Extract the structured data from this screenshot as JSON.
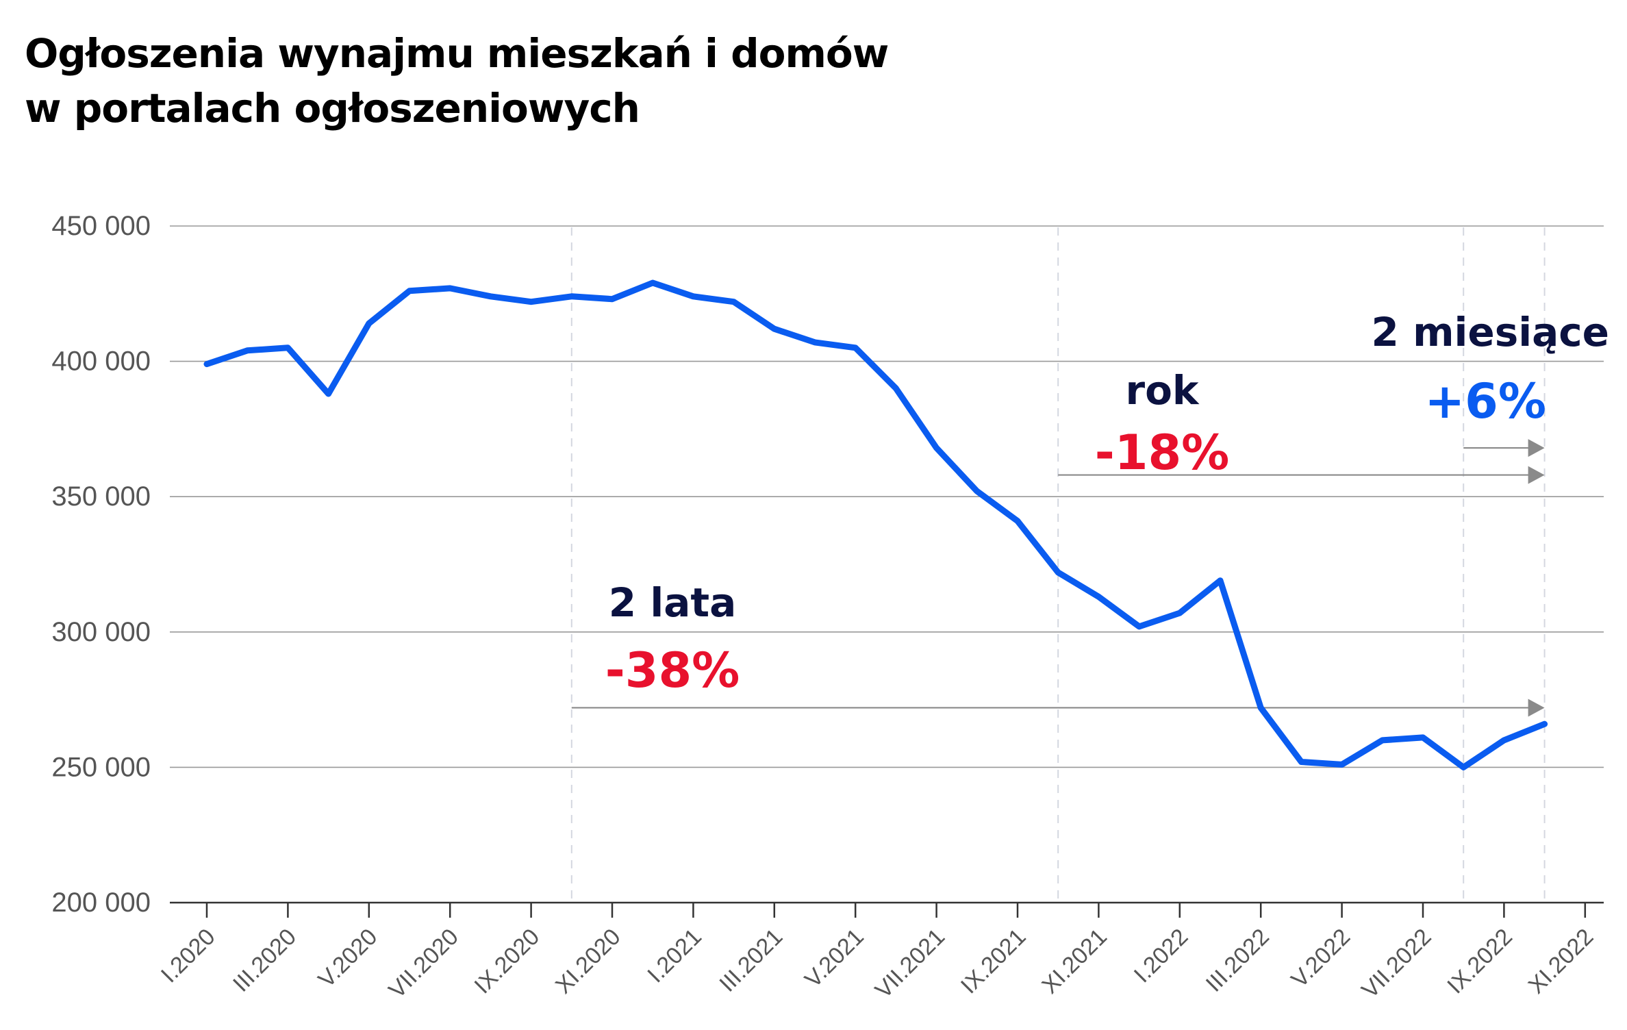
{
  "title": {
    "line1": "Ogłoszenia wynajmu mieszkań i domów",
    "line2": "w portalach ogłoszeniowych"
  },
  "colors": {
    "line": "#0a5cf0",
    "negative": "#e8112d",
    "positive": "#0a5cf0",
    "label": "#0b1240",
    "grid": "#999999",
    "arrow": "#8a8a8a"
  },
  "chart_data": {
    "type": "line",
    "ylim": [
      200000,
      450000
    ],
    "yticks": [
      {
        "value": 200000,
        "label": "200 000"
      },
      {
        "value": 250000,
        "label": "250 000"
      },
      {
        "value": 300000,
        "label": "300 000"
      },
      {
        "value": 350000,
        "label": "350 000"
      },
      {
        "value": 400000,
        "label": "400 000"
      },
      {
        "value": 450000,
        "label": "450 000"
      }
    ],
    "xticks": [
      "I.2020",
      "III.2020",
      "V.2020",
      "VII.2020",
      "IX.2020",
      "XI.2020",
      "I.2021",
      "III.2021",
      "V.2021",
      "VII.2021",
      "IX.2021",
      "XI.2021",
      "I.2022",
      "III.2022",
      "V.2022",
      "VII.2022",
      "IX.2022",
      "XI.2022"
    ],
    "x": [
      "I.2020",
      "II.2020",
      "III.2020",
      "IV.2020",
      "V.2020",
      "VI.2020",
      "VII.2020",
      "VIII.2020",
      "IX.2020",
      "X.2020",
      "XI.2020",
      "XII.2020",
      "I.2021",
      "II.2021",
      "III.2021",
      "IV.2021",
      "V.2021",
      "VI.2021",
      "VII.2021",
      "VIII.2021",
      "IX.2021",
      "X.2021",
      "XI.2021",
      "XII.2021",
      "I.2022",
      "II.2022",
      "III.2022",
      "IV.2022",
      "V.2022",
      "VI.2022",
      "VII.2022",
      "VIII.2022",
      "IX.2022",
      "X.2022"
    ],
    "values": [
      399000,
      404000,
      405000,
      388000,
      414000,
      426000,
      427000,
      424000,
      422000,
      424000,
      423000,
      429000,
      424000,
      422000,
      412000,
      407000,
      405000,
      390000,
      368000,
      352000,
      341000,
      322000,
      313000,
      302000,
      307000,
      319000,
      272000,
      252000,
      251000,
      260000,
      261000,
      250000,
      260000,
      266000
    ],
    "reference_lines": [
      "X.2020",
      "X.2021",
      "VIII.2022",
      "X.2022"
    ],
    "annotations": [
      {
        "label": "2 lata",
        "value": "-38%",
        "from": "X.2020",
        "to": "X.2022",
        "arrow_y": 272000,
        "tone": "negative"
      },
      {
        "label": "rok",
        "value": "-18%",
        "from": "X.2021",
        "to": "X.2022",
        "arrow_y": 358000,
        "tone": "negative"
      },
      {
        "label": "2 miesiące",
        "value": "+6%",
        "from": "VIII.2022",
        "to": "X.2022",
        "arrow_y": 368000,
        "tone": "positive"
      }
    ],
    "grid": true,
    "legend": "none"
  }
}
